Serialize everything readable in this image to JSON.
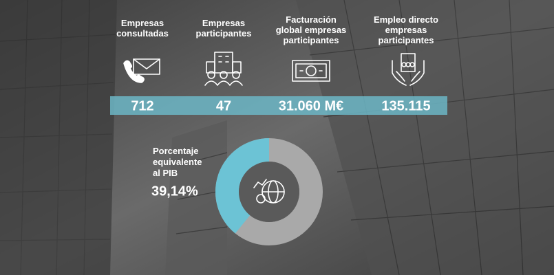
{
  "stats": [
    {
      "label": [
        "Empresas",
        "consultadas"
      ],
      "value": "712"
    },
    {
      "label": [
        "Empresas",
        "participantes"
      ],
      "value": "47"
    },
    {
      "label": [
        "Facturación",
        "global empresas",
        "participantes"
      ],
      "value": "31.060 M€"
    },
    {
      "label": [
        "Empleo directo",
        "empresas",
        "participantes"
      ],
      "value": "135.115"
    }
  ],
  "gdp": {
    "label": [
      "Porcentaje",
      "equivalente",
      "al PIB"
    ],
    "value": 39.14,
    "value_label": "39,14%"
  }
}
